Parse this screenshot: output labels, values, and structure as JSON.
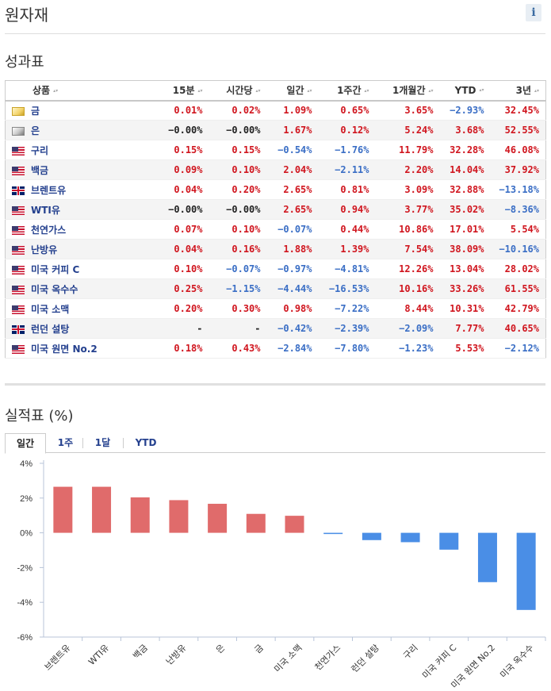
{
  "header": {
    "title": "원자재",
    "info_icon_label": "i"
  },
  "performance": {
    "title": "성과표",
    "columns": [
      "상품",
      "15분",
      "시간당",
      "일간",
      "1주간",
      "1개월간",
      "YTD",
      "3년"
    ],
    "rows": [
      {
        "name": "금",
        "flag": "gold",
        "values": [
          "0.01%",
          "0.02%",
          "1.09%",
          "0.65%",
          "3.65%",
          "-2.93%",
          "32.45%"
        ]
      },
      {
        "name": "은",
        "flag": "silver",
        "values": [
          "-0.00%",
          "-0.00%",
          "1.67%",
          "0.12%",
          "5.24%",
          "3.68%",
          "52.55%"
        ]
      },
      {
        "name": "구리",
        "flag": "us",
        "values": [
          "0.15%",
          "0.15%",
          "-0.54%",
          "-1.76%",
          "11.79%",
          "32.28%",
          "46.08%"
        ]
      },
      {
        "name": "백금",
        "flag": "us",
        "values": [
          "0.09%",
          "0.10%",
          "2.04%",
          "-2.11%",
          "2.20%",
          "14.04%",
          "37.92%"
        ]
      },
      {
        "name": "브렌트유",
        "flag": "uk",
        "values": [
          "0.04%",
          "0.20%",
          "2.65%",
          "0.81%",
          "3.09%",
          "32.88%",
          "-13.18%"
        ]
      },
      {
        "name": "WTI유",
        "flag": "us",
        "values": [
          "-0.00%",
          "-0.00%",
          "2.65%",
          "0.94%",
          "3.77%",
          "35.02%",
          "-8.36%"
        ]
      },
      {
        "name": "천연가스",
        "flag": "us",
        "values": [
          "0.07%",
          "0.10%",
          "-0.07%",
          "0.44%",
          "10.86%",
          "17.01%",
          "5.54%"
        ]
      },
      {
        "name": "난방유",
        "flag": "us",
        "values": [
          "0.04%",
          "0.16%",
          "1.88%",
          "1.39%",
          "7.54%",
          "38.09%",
          "-10.16%"
        ]
      },
      {
        "name": "미국 커피 C",
        "flag": "us",
        "values": [
          "0.10%",
          "-0.07%",
          "-0.97%",
          "-4.81%",
          "12.26%",
          "13.04%",
          "28.02%"
        ]
      },
      {
        "name": "미국 옥수수",
        "flag": "us",
        "values": [
          "0.25%",
          "-1.15%",
          "-4.44%",
          "-16.53%",
          "10.16%",
          "33.26%",
          "61.55%"
        ]
      },
      {
        "name": "미국 소맥",
        "flag": "us",
        "values": [
          "0.20%",
          "0.30%",
          "0.98%",
          "-7.22%",
          "8.44%",
          "10.31%",
          "42.79%"
        ]
      },
      {
        "name": "런던 설탕",
        "flag": "uk",
        "values": [
          "-",
          "-",
          "-0.42%",
          "-2.39%",
          "-2.09%",
          "7.77%",
          "40.65%"
        ]
      },
      {
        "name": "미국 원면 No.2",
        "flag": "us",
        "values": [
          "0.18%",
          "0.43%",
          "-2.84%",
          "-7.80%",
          "-1.23%",
          "5.53%",
          "-2.12%"
        ]
      }
    ]
  },
  "chart_section": {
    "title": "실적표 (%)",
    "tabs": [
      "일간",
      "1주",
      "1달",
      "YTD"
    ],
    "active_tab": "일간"
  },
  "chart_data": {
    "type": "bar",
    "title": "",
    "xlabel": "",
    "ylabel": "",
    "categories": [
      "브렌트유",
      "WTI유",
      "백금",
      "난방유",
      "은",
      "금",
      "미국 소맥",
      "천연가스",
      "런던 설탕",
      "구리",
      "미국 커피 C",
      "미국 원면 No.2",
      "미국 옥수수"
    ],
    "values": [
      2.65,
      2.65,
      2.04,
      1.88,
      1.67,
      1.09,
      0.98,
      -0.07,
      -0.42,
      -0.54,
      -0.97,
      -2.84,
      -4.44
    ],
    "yticks": [
      4,
      2,
      0,
      -2,
      -4,
      -6
    ],
    "ytick_labels": [
      "4%",
      "2%",
      "0%",
      "-2%",
      "-4%",
      "-6%"
    ],
    "ylim": [
      -6,
      4
    ],
    "positive_color": "#e06b6b",
    "negative_color": "#4a8ee6",
    "grid": false,
    "legend": "none"
  }
}
